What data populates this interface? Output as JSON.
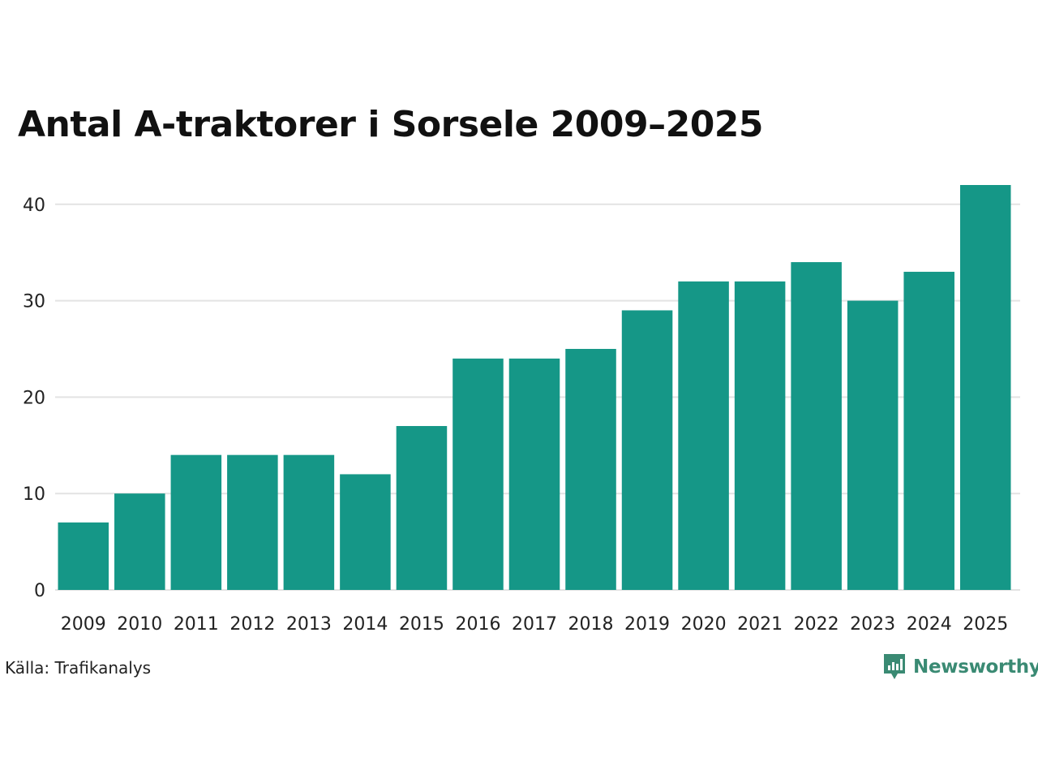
{
  "chart_data": {
    "type": "bar",
    "title": "Antal A-traktorer i Sorsele 2009–2025",
    "xlabel": "",
    "ylabel": "",
    "categories": [
      "2009",
      "2010",
      "2011",
      "2012",
      "2013",
      "2014",
      "2015",
      "2016",
      "2017",
      "2018",
      "2019",
      "2020",
      "2021",
      "2022",
      "2023",
      "2024",
      "2025"
    ],
    "values": [
      7,
      10,
      14,
      14,
      14,
      12,
      17,
      24,
      24,
      25,
      29,
      32,
      32,
      34,
      30,
      33,
      42
    ],
    "ylim": [
      0,
      42
    ],
    "yticks": [
      0,
      10,
      20,
      30,
      40
    ],
    "grid": true,
    "bar_color": "#159787",
    "grid_color": "#e3e3e3"
  },
  "footer": {
    "source": "Källa: Trafikanalys",
    "brand": "Newsworthy",
    "brand_color": "#3a8a73",
    "logo_icon": "newsworthy-logo-icon"
  }
}
